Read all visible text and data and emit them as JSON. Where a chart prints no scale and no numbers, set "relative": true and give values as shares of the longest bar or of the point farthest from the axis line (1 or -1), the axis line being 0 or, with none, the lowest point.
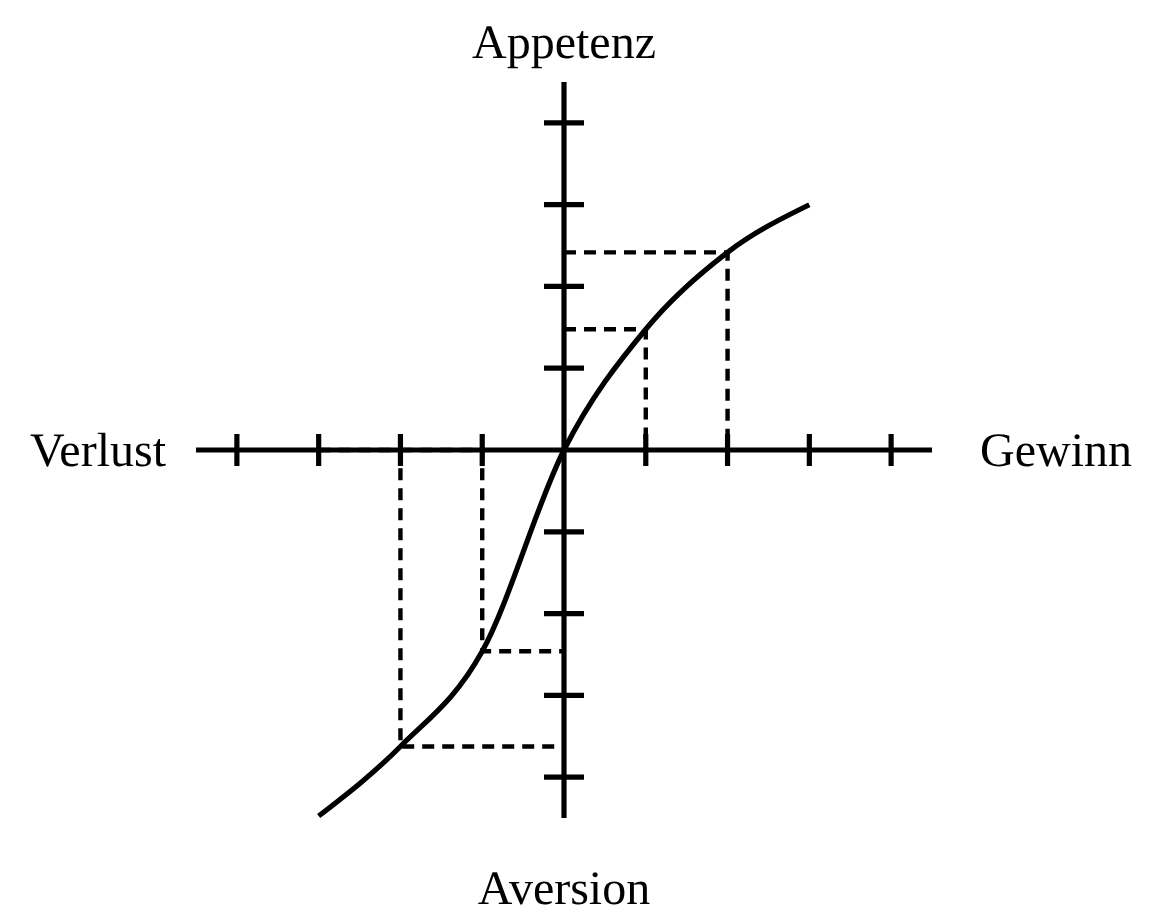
{
  "chart_data": {
    "type": "line",
    "ylabel": "Appetenz",
    "xlabel": "Gewinn",
    "annotations": [
      "Verlust",
      "Aversion"
    ],
    "relative": true,
    "categories": [
      null,
      null,
      null,
      null,
      null,
      null,
      null,
      null,
      null
    ],
    "series": [
      {
        "color": "#000000",
        "values": [
          null,
          -1,
          -0.81,
          -0.55,
          0,
          0.33,
          0.54,
          0.67,
          null
        ]
      },
      {
        "type": "step",
        "color": "#000000",
        "line_style": "dashed",
        "values": [
          null,
          null,
          null,
          null,
          0.54,
          0.54,
          0,
          null,
          null
        ]
      },
      {
        "type": "step",
        "color": "#000000",
        "line_style": "dashed",
        "values": [
          null,
          0,
          -0.81,
          -0.81,
          -0.81,
          null,
          null,
          null,
          null
        ]
      },
      {
        "type": "step",
        "color": "#000000",
        "line_style": "dashed",
        "values": [
          null,
          null,
          0,
          -0.55,
          -0.55,
          null,
          null,
          null,
          null
        ]
      },
      {
        "type": "step",
        "color": "#000000",
        "line_style": "dashed",
        "values": [
          null,
          null,
          null,
          null,
          0.33,
          0,
          null,
          null,
          null
        ]
      }
    ]
  }
}
